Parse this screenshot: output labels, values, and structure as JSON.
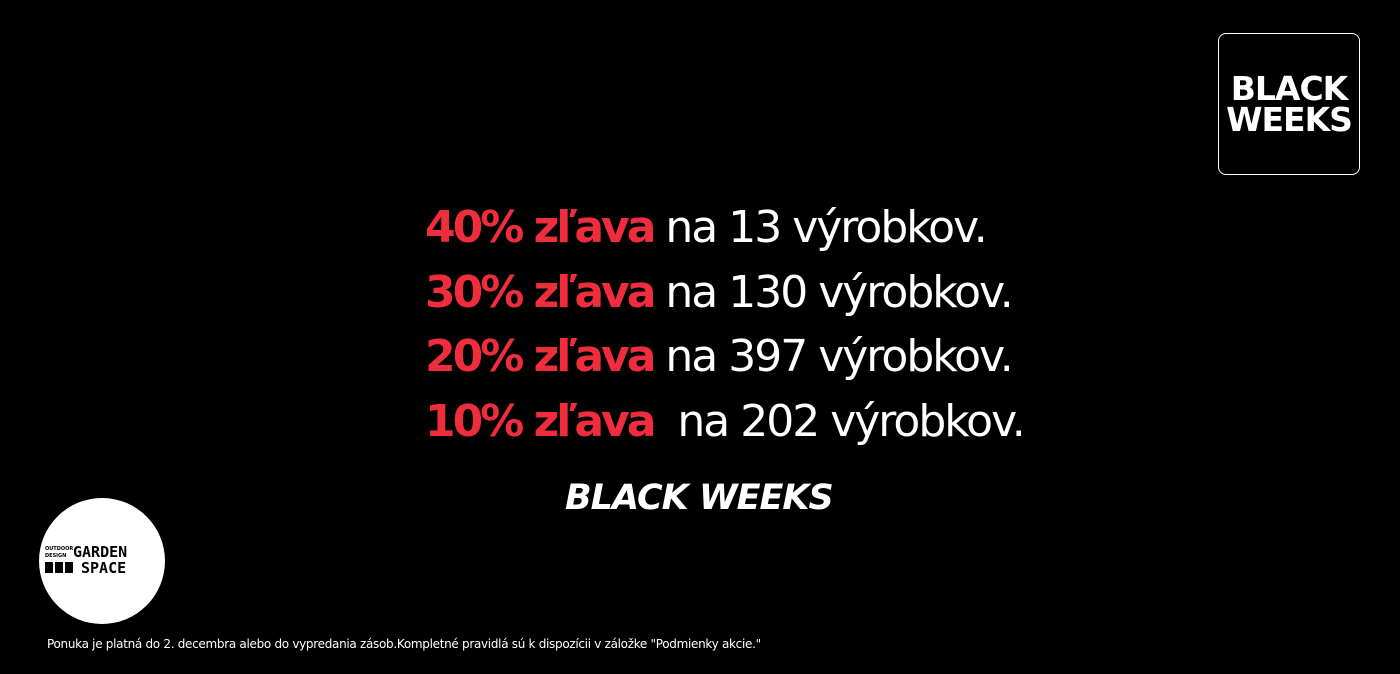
{
  "badge": {
    "line1": "BLACK",
    "line2": "WEEKS"
  },
  "offers": [
    {
      "discount": "40% zľava",
      "text": "na 13 výrobkov."
    },
    {
      "discount": "30% zľava",
      "text": "na 130 výrobkov."
    },
    {
      "discount": "20% zľava",
      "text": "na 397 výrobkov."
    },
    {
      "discount": "10% zľava",
      "text": "na 202 výrobkov."
    }
  ],
  "campaign": "BLACK WEEKS",
  "logo": {
    "small1": "OUTDOOR",
    "small2": "DESIGN",
    "big1": "GARDEN",
    "big2": "SPACE"
  },
  "footer": "Ponuka je platná do 2. decembra alebo do vypredania zásob.Kompletné pravidlá sú k dispozícii v záložke \"Podmienky akcie.\"",
  "colors": {
    "accent": "#ef2d3d",
    "background": "#000000"
  }
}
